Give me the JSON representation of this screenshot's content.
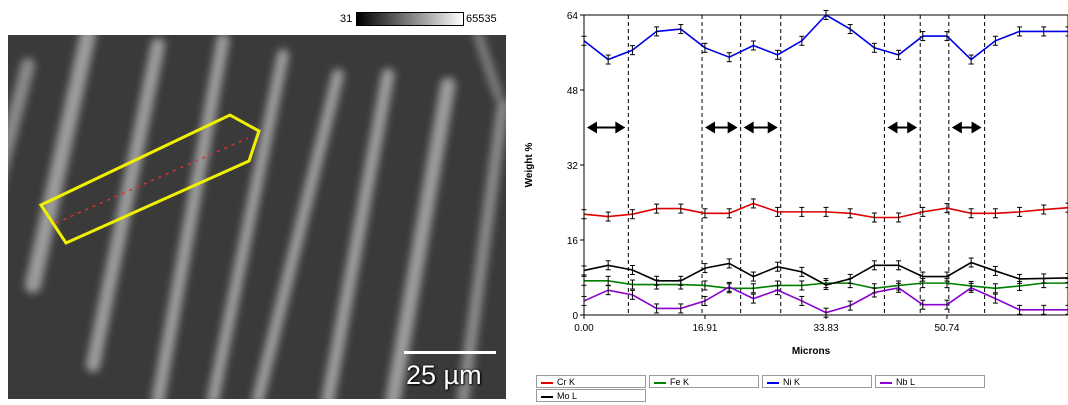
{
  "colorbar": {
    "min_label": "31",
    "max_label": "65535"
  },
  "micrograph": {
    "scale_label": "25 µm",
    "image_description_icon": "sem-micrograph-image"
  },
  "chart_data": {
    "type": "line",
    "xlabel": "Microns",
    "ylabel": "Weight %",
    "xlim": [
      0,
      67.66
    ],
    "ylim": [
      0,
      64
    ],
    "x_ticks": [
      "0.00",
      "16.91",
      "33.83",
      "50.74"
    ],
    "x_tick_values": [
      0,
      16.91,
      33.83,
      50.74
    ],
    "y_ticks": [
      "0",
      "16",
      "32",
      "48",
      "64"
    ],
    "y_tick_values": [
      0,
      16,
      32,
      48,
      64
    ],
    "x": [
      0,
      3.38,
      6.77,
      10.15,
      13.53,
      16.91,
      20.3,
      23.68,
      27.06,
      30.45,
      33.83,
      37.21,
      40.59,
      43.98,
      47.36,
      50.74,
      54.12,
      57.51,
      60.89,
      64.27,
      67.66
    ],
    "series": [
      {
        "name": "Cr K",
        "color": "#e00000",
        "values": [
          21.5,
          21,
          21.5,
          22.7,
          22.7,
          21.7,
          21.7,
          23.8,
          22,
          22,
          22,
          21.7,
          20.8,
          20.8,
          22,
          22.8,
          21.7,
          21.7,
          22,
          22.5,
          22.9
        ]
      },
      {
        "name": "Fe K",
        "color": "#008000",
        "values": [
          7.3,
          7.3,
          6.5,
          6.5,
          6.5,
          6.3,
          5.7,
          5.7,
          6.3,
          6.3,
          6.8,
          6.8,
          5.7,
          6.3,
          6.8,
          6.8,
          6.2,
          5.7,
          6.2,
          6.8,
          6.8
        ]
      },
      {
        "name": "Ni K",
        "color": "#0000e8",
        "values": [
          58.5,
          54.5,
          56.5,
          60.5,
          61,
          57,
          55,
          57.5,
          55.5,
          58.5,
          64,
          61,
          57,
          55.5,
          59.5,
          59.5,
          54.5,
          58.5,
          60.5,
          60.5,
          60.5
        ]
      },
      {
        "name": "Nb L",
        "color": "#8a00d0",
        "values": [
          3,
          5.3,
          4.3,
          1.4,
          1.4,
          3,
          6,
          3.5,
          5.3,
          3,
          0.5,
          2,
          4.8,
          5.8,
          2.2,
          2.2,
          5.8,
          3.5,
          1.1,
          1.1,
          1.1
        ]
      },
      {
        "name": "Mo L",
        "color": "#000000",
        "values": [
          9.5,
          10.6,
          9.6,
          7.3,
          7.3,
          10,
          11,
          8.2,
          10.3,
          9.2,
          6.4,
          7.7,
          10.6,
          10.6,
          8.2,
          8.2,
          11.2,
          9.4,
          7.7,
          7.8,
          7.9
        ]
      }
    ],
    "vertical_markers": [
      6.2,
      16.5,
      21.9,
      27.5,
      42,
      47,
      51,
      56
    ],
    "arrows": [
      {
        "from": 0,
        "to": 6.2,
        "y": 40
      },
      {
        "from": 16.5,
        "to": 21.9,
        "y": 40
      },
      {
        "from": 21.9,
        "to": 27.5,
        "y": 40
      },
      {
        "from": 42,
        "to": 47,
        "y": 40
      },
      {
        "from": 51,
        "to": 56,
        "y": 40
      }
    ],
    "legend_placement": "bottom"
  }
}
